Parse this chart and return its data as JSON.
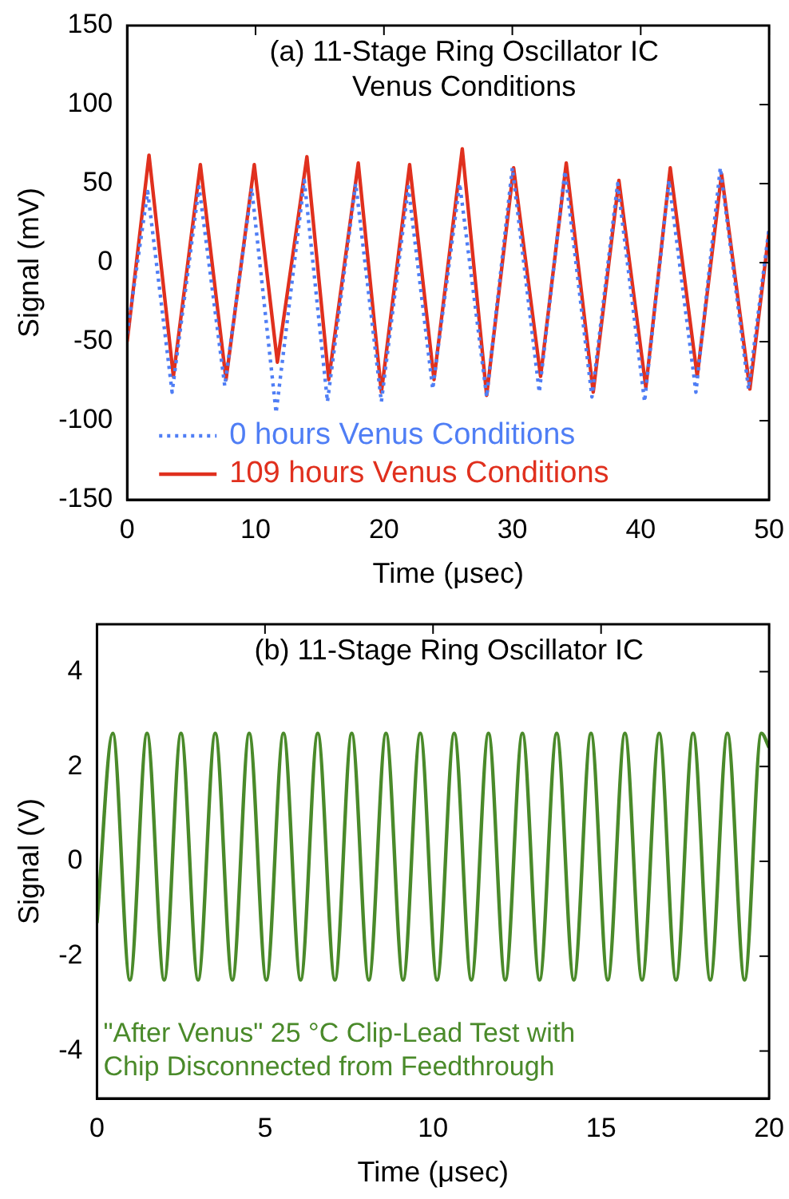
{
  "chart_data": [
    {
      "type": "line",
      "title": "(a) 11-Stage Ring Oscillator IC",
      "subtitle": "Venus Conditions",
      "xlabel": "Time (μsec)",
      "ylabel": "Signal (mV)",
      "xlim": [
        0,
        50
      ],
      "xticks": [
        0,
        10,
        20,
        30,
        40,
        50
      ],
      "ylim": [
        -150,
        150
      ],
      "yticks": [
        -150,
        -100,
        -50,
        0,
        50,
        100,
        150
      ],
      "grid": false,
      "legend": "bottom",
      "marker": "none",
      "series": [
        {
          "name": "0 hours Venus Conditions",
          "color": "#4f7ef5",
          "line_style": "dotted",
          "x": [
            0,
            1.6,
            3.5,
            5.6,
            7.6,
            9.7,
            11.6,
            13.8,
            15.6,
            17.8,
            19.8,
            21.9,
            23.8,
            25.9,
            28.0,
            30.0,
            32.1,
            34.1,
            36.2,
            38.2,
            40.3,
            42.2,
            44.3,
            46.2,
            48.4,
            50
          ],
          "values": [
            -45,
            45,
            -82,
            48,
            -78,
            47,
            -95,
            52,
            -88,
            50,
            -88,
            48,
            -80,
            50,
            -85,
            60,
            -82,
            58,
            -85,
            50,
            -88,
            52,
            -82,
            60,
            -80,
            22
          ]
        },
        {
          "name": "109 hours Venus Conditions",
          "color": "#e0301e",
          "line_style": "solid",
          "x": [
            0,
            1.7,
            3.6,
            5.7,
            7.7,
            9.9,
            11.7,
            14.0,
            15.7,
            18.0,
            19.8,
            22.0,
            23.9,
            26.1,
            28.0,
            30.1,
            32.2,
            34.2,
            36.3,
            38.3,
            40.4,
            42.3,
            44.4,
            46.3,
            48.5,
            50
          ],
          "values": [
            -50,
            68,
            -72,
            62,
            -74,
            62,
            -63,
            67,
            -74,
            63,
            -82,
            62,
            -74,
            72,
            -84,
            60,
            -72,
            63,
            -82,
            52,
            -79,
            60,
            -72,
            56,
            -80,
            20
          ]
        }
      ]
    },
    {
      "type": "line",
      "title": "(b) 11-Stage Ring Oscillator IC",
      "xlabel": "Time (μsec)",
      "ylabel": "Signal (V)",
      "xlim": [
        0,
        20
      ],
      "xticks": [
        0,
        5,
        10,
        15,
        20
      ],
      "ylim": [
        -5,
        5
      ],
      "yticks": [
        -4,
        -2,
        0,
        2,
        4
      ],
      "grid": false,
      "marker": "none",
      "annotations": [
        "\"After Venus\" 25 °C Clip-Lead Test with",
        "Chip Disconnected from Feedthrough"
      ],
      "series": [
        {
          "color": "#4a8a2a",
          "line_style": "solid",
          "x": [
            0,
            0.47,
            0.98,
            1.49,
            2.0,
            2.5,
            3.01,
            3.52,
            4.03,
            4.53,
            5.04,
            5.55,
            6.06,
            6.57,
            7.08,
            7.58,
            8.09,
            8.6,
            9.11,
            9.62,
            10.12,
            10.63,
            11.14,
            11.65,
            12.15,
            12.66,
            13.17,
            13.68,
            14.19,
            14.7,
            15.2,
            15.71,
            16.22,
            16.73,
            17.23,
            17.74,
            18.25,
            18.76,
            19.27,
            19.77,
            20
          ],
          "values": [
            -1.3,
            2.7,
            -2.5,
            2.7,
            -2.5,
            2.7,
            -2.5,
            2.7,
            -2.5,
            2.7,
            -2.5,
            2.7,
            -2.5,
            2.7,
            -2.5,
            2.7,
            -2.5,
            2.7,
            -2.5,
            2.7,
            -2.5,
            2.7,
            -2.5,
            2.7,
            -2.5,
            2.7,
            -2.5,
            2.7,
            -2.5,
            2.7,
            -2.5,
            2.7,
            -2.5,
            2.7,
            -2.5,
            2.7,
            -2.5,
            2.7,
            -2.5,
            2.7,
            2.4
          ]
        }
      ]
    }
  ]
}
